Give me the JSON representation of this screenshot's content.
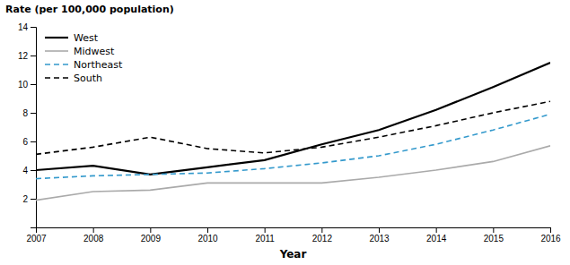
{
  "chart_data": {
    "type": "line",
    "ylabel": "Rate (per 100,000 population)",
    "xlabel": "Year",
    "x": [
      2007,
      2008,
      2009,
      2010,
      2011,
      2012,
      2013,
      2014,
      2015,
      2016
    ],
    "series": [
      {
        "name": "West",
        "color": "#000000",
        "line_style": "solid",
        "values": [
          4.0,
          4.3,
          3.7,
          4.2,
          4.7,
          5.8,
          6.8,
          8.2,
          9.8,
          11.5
        ]
      },
      {
        "name": "Midwest",
        "color": "#aaaaaa",
        "line_style": "solid",
        "values": [
          1.9,
          2.5,
          2.6,
          3.1,
          3.1,
          3.1,
          3.5,
          4.0,
          4.6,
          5.7
        ]
      },
      {
        "name": "Northeast",
        "color": "#3399cc",
        "line_style": "dashed",
        "values": [
          3.4,
          3.6,
          3.7,
          3.8,
          4.1,
          4.5,
          5.0,
          5.8,
          6.8,
          7.9
        ]
      },
      {
        "name": "South",
        "color": "#000000",
        "line_style": "dashed",
        "values": [
          5.1,
          5.6,
          6.3,
          5.5,
          5.2,
          5.6,
          6.3,
          7.1,
          8.0,
          8.8
        ]
      }
    ],
    "xlim": [
      2007,
      2016
    ],
    "xticks": [
      2007,
      2008,
      2009,
      2010,
      2011,
      2012,
      2013,
      2014,
      2015,
      2016
    ],
    "ylim": [
      0,
      14
    ],
    "yticks": [
      2,
      4,
      6,
      8,
      10,
      12,
      14
    ],
    "grid": false,
    "legend": "upper left"
  }
}
